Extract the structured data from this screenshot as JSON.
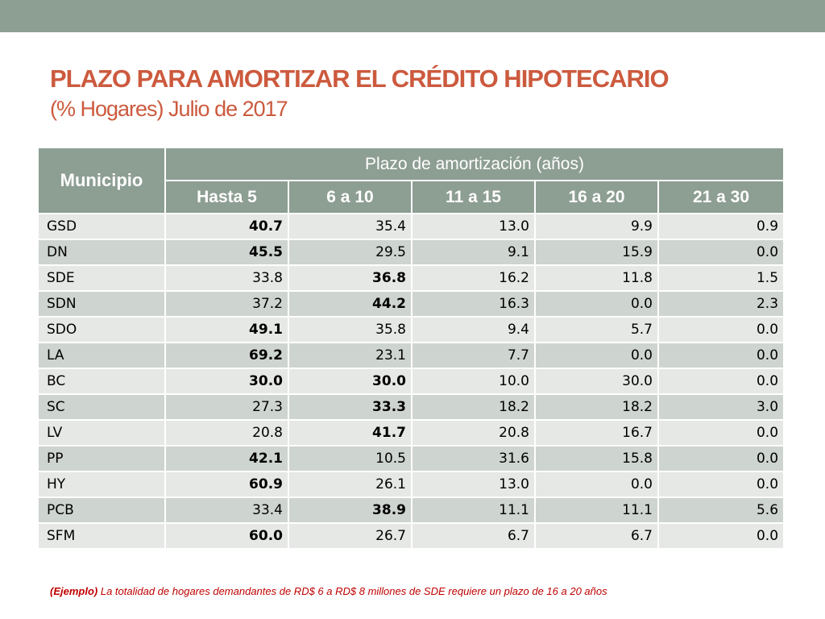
{
  "title": {
    "line1": "PLAZO PARA AMORTIZAR EL CRÉDITO HIPOTECARIO",
    "line2": "(% Hogares) Julio de 2017"
  },
  "table": {
    "municipio_header": "Municipio",
    "group_header": "Plazo de amortización (años)",
    "columns": [
      "Hasta 5",
      "6 a 10",
      "11 a 15",
      "16 a 20",
      "21 a 30"
    ],
    "rows": [
      {
        "name": "GSD",
        "values": [
          "40.7",
          "35.4",
          "13.0",
          "9.9",
          "0.9"
        ],
        "bold": [
          0
        ]
      },
      {
        "name": "DN",
        "values": [
          "45.5",
          "29.5",
          "9.1",
          "15.9",
          "0.0"
        ],
        "bold": [
          0
        ]
      },
      {
        "name": "SDE",
        "values": [
          "33.8",
          "36.8",
          "16.2",
          "11.8",
          "1.5"
        ],
        "bold": [
          1
        ]
      },
      {
        "name": "SDN",
        "values": [
          "37.2",
          "44.2",
          "16.3",
          "0.0",
          "2.3"
        ],
        "bold": [
          1
        ]
      },
      {
        "name": "SDO",
        "values": [
          "49.1",
          "35.8",
          "9.4",
          "5.7",
          "0.0"
        ],
        "bold": [
          0
        ]
      },
      {
        "name": "LA",
        "values": [
          "69.2",
          "23.1",
          "7.7",
          "0.0",
          "0.0"
        ],
        "bold": [
          0
        ]
      },
      {
        "name": "BC",
        "values": [
          "30.0",
          "30.0",
          "10.0",
          "30.0",
          "0.0"
        ],
        "bold": [
          0,
          1
        ]
      },
      {
        "name": "SC",
        "values": [
          "27.3",
          "33.3",
          "18.2",
          "18.2",
          "3.0"
        ],
        "bold": [
          1
        ]
      },
      {
        "name": "LV",
        "values": [
          "20.8",
          "41.7",
          "20.8",
          "16.7",
          "0.0"
        ],
        "bold": [
          1
        ]
      },
      {
        "name": "PP",
        "values": [
          "42.1",
          "10.5",
          "31.6",
          "15.8",
          "0.0"
        ],
        "bold": [
          0
        ]
      },
      {
        "name": "HY",
        "values": [
          "60.9",
          "26.1",
          "13.0",
          "0.0",
          "0.0"
        ],
        "bold": [
          0
        ]
      },
      {
        "name": "PCB",
        "values": [
          "33.4",
          "38.9",
          "11.1",
          "11.1",
          "5.6"
        ],
        "bold": [
          1
        ]
      },
      {
        "name": "SFM",
        "values": [
          "60.0",
          "26.7",
          "6.7",
          "6.7",
          "0.0"
        ],
        "bold": [
          0
        ]
      }
    ]
  },
  "note": {
    "lead": "(Ejemplo)",
    "text": " La totalidad de hogares demandantes de RD$ 6 a RD$ 8 millones de SDE requiere un plazo de 16 a 20 años"
  },
  "colors": {
    "title": "#cc5a3e",
    "header_bg": "#8d9e93",
    "row_light": "#e6e8e5",
    "row_dark": "#ced4d0",
    "note": "#c00000"
  }
}
